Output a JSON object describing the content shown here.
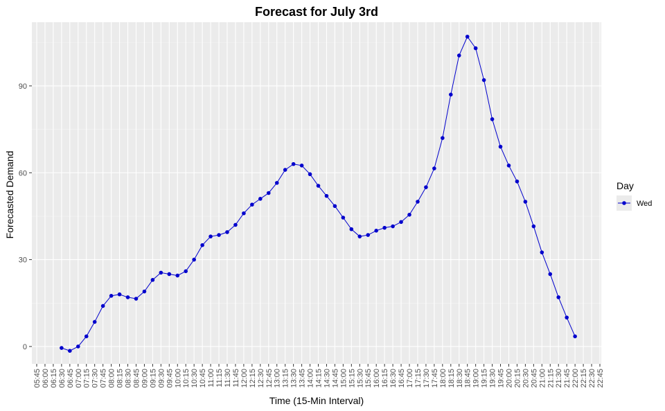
{
  "chart_data": {
    "type": "line",
    "title": "Forecast for July 3rd",
    "xlabel": "Time (15-Min Interval)",
    "ylabel": "Forecasted Demand",
    "x_ticks": [
      "05:45",
      "06:00",
      "06:15",
      "06:30",
      "06:45",
      "07:00",
      "07:15",
      "07:30",
      "07:45",
      "08:00",
      "08:15",
      "08:30",
      "08:45",
      "09:00",
      "09:15",
      "09:30",
      "09:45",
      "10:00",
      "10:15",
      "10:30",
      "10:45",
      "11:00",
      "11:15",
      "11:30",
      "11:45",
      "12:00",
      "12:15",
      "12:30",
      "12:45",
      "13:00",
      "13:15",
      "13:30",
      "13:45",
      "14:00",
      "14:15",
      "14:30",
      "14:45",
      "15:00",
      "15:15",
      "15:30",
      "15:45",
      "16:00",
      "16:15",
      "16:30",
      "16:45",
      "17:00",
      "17:15",
      "17:30",
      "17:45",
      "18:00",
      "18:15",
      "18:30",
      "18:45",
      "19:00",
      "19:15",
      "19:30",
      "19:45",
      "20:00",
      "20:15",
      "20:30",
      "20:45",
      "21:00",
      "21:15",
      "21:30",
      "21:45",
      "22:00",
      "22:15",
      "22:30",
      "22:45"
    ],
    "y_ticks": [
      0,
      30,
      60,
      90
    ],
    "ylim": [
      -6,
      112
    ],
    "grid": true,
    "legend_position": "right",
    "legend_title": "Day",
    "series": [
      {
        "name": "Wed",
        "color": "#0000CD",
        "x": [
          "06:30",
          "06:45",
          "07:00",
          "07:15",
          "07:30",
          "07:45",
          "08:00",
          "08:15",
          "08:30",
          "08:45",
          "09:00",
          "09:15",
          "09:30",
          "09:45",
          "10:00",
          "10:15",
          "10:30",
          "10:45",
          "11:00",
          "11:15",
          "11:30",
          "11:45",
          "12:00",
          "12:15",
          "12:30",
          "12:45",
          "13:00",
          "13:15",
          "13:30",
          "13:45",
          "14:00",
          "14:15",
          "14:30",
          "14:45",
          "15:00",
          "15:15",
          "15:30",
          "15:45",
          "16:00",
          "16:15",
          "16:30",
          "16:45",
          "17:00",
          "17:15",
          "17:30",
          "17:45",
          "18:00",
          "18:15",
          "18:30",
          "18:45",
          "19:00",
          "19:15",
          "19:30",
          "19:45",
          "20:00",
          "20:15",
          "20:30",
          "20:45",
          "21:00",
          "21:15",
          "21:30",
          "21:45",
          "22:00"
        ],
        "values": [
          -0.5,
          -1.5,
          0,
          3.5,
          8.5,
          14,
          17.5,
          18,
          17,
          16.5,
          19,
          23,
          25.5,
          25,
          24.5,
          26,
          30,
          35,
          38,
          38.5,
          39.5,
          42,
          46,
          49,
          51,
          53,
          56.5,
          61,
          63,
          62.5,
          59.5,
          55.5,
          52,
          48.5,
          44.5,
          40.5,
          38,
          38.5,
          40,
          41,
          41.5,
          43,
          45.5,
          50,
          55,
          61.5,
          72,
          87,
          100.5,
          107,
          103,
          92,
          78.5,
          69,
          62.5,
          57,
          50,
          41.5,
          32.5,
          25,
          17,
          10,
          3.5
        ]
      }
    ]
  }
}
